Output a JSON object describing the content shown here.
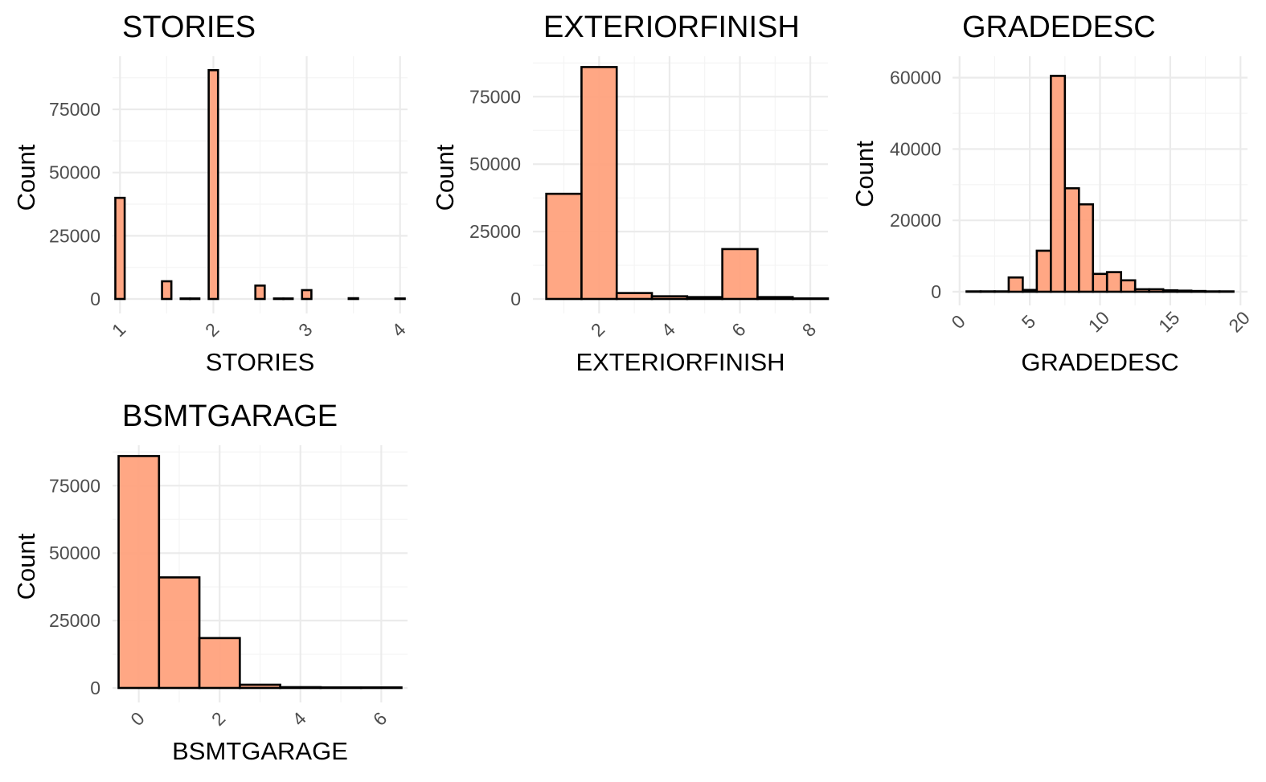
{
  "colors": {
    "bar_fill": "#FFA07A",
    "bar_stroke": "#000000",
    "grid": "#EBEBEB",
    "background": "#FFFFFF"
  },
  "chart_data": [
    {
      "type": "bar",
      "title": "STORIES",
      "xlabel": "STORIES",
      "ylabel": "Count",
      "bin_width": 0.1,
      "xlim": [
        0.92,
        4.08
      ],
      "ylim": [
        0,
        96000
      ],
      "x_ticks": [
        1,
        2,
        3,
        4
      ],
      "x_tick_labels": [
        "1",
        "2",
        "3",
        "4"
      ],
      "y_ticks": [
        0,
        25000,
        50000,
        75000
      ],
      "y_tick_labels": [
        "0",
        "25000",
        "50000",
        "75000"
      ],
      "x": [
        1.0,
        1.1,
        1.2,
        1.3,
        1.4,
        1.5,
        1.6,
        1.7,
        1.8,
        1.9,
        2.0,
        2.1,
        2.2,
        2.3,
        2.4,
        2.5,
        2.6,
        2.7,
        2.8,
        2.9,
        3.0,
        3.1,
        3.2,
        3.3,
        3.4,
        3.5,
        3.6,
        3.7,
        3.8,
        3.9,
        4.0
      ],
      "values": [
        40000,
        0,
        0,
        0,
        0,
        7000,
        0,
        200,
        200,
        0,
        90500,
        0,
        0,
        0,
        0,
        5300,
        0,
        200,
        200,
        0,
        3500,
        0,
        0,
        0,
        0,
        300,
        0,
        0,
        0,
        0,
        200
      ],
      "grid": true
    },
    {
      "type": "bar",
      "title": "EXTERIORFINISH",
      "xlabel": "EXTERIORFINISH",
      "ylabel": "Count",
      "bin_width": 1,
      "xlim": [
        0.12,
        8.5
      ],
      "ylim": [
        0,
        90000
      ],
      "x_ticks": [
        2,
        4,
        6,
        8
      ],
      "x_tick_labels": [
        "2",
        "4",
        "6",
        "8"
      ],
      "y_ticks": [
        0,
        25000,
        50000,
        75000
      ],
      "y_tick_labels": [
        "0",
        "25000",
        "50000",
        "75000"
      ],
      "x": [
        1,
        2,
        3,
        4,
        5,
        6,
        7,
        8
      ],
      "values": [
        39000,
        86000,
        2200,
        1000,
        700,
        18500,
        700,
        200
      ],
      "grid": true
    },
    {
      "type": "bar",
      "title": "GRADEDESC",
      "xlabel": "GRADEDESC",
      "ylabel": "Count",
      "bin_width": 1,
      "xlim": [
        -0.5,
        20.5
      ],
      "ylim": [
        0,
        66000
      ],
      "x_ticks": [
        0,
        5,
        10,
        15,
        20
      ],
      "x_tick_labels": [
        "0",
        "5",
        "10",
        "15",
        "20"
      ],
      "y_ticks": [
        0,
        20000,
        40000,
        60000
      ],
      "y_tick_labels": [
        "0",
        "20000",
        "40000",
        "60000"
      ],
      "x": [
        1,
        2,
        3,
        4,
        5,
        6,
        7,
        8,
        9,
        10,
        11,
        12,
        13,
        14,
        15,
        16,
        17,
        18,
        19
      ],
      "values": [
        100,
        100,
        100,
        4000,
        500,
        11500,
        60500,
        29000,
        24500,
        5000,
        5500,
        3200,
        700,
        700,
        400,
        300,
        200,
        100,
        100
      ],
      "grid": true
    },
    {
      "type": "bar",
      "title": "BSMTGARAGE",
      "xlabel": "BSMTGARAGE",
      "ylabel": "Count",
      "bin_width": 1,
      "xlim": [
        -0.65,
        6.65
      ],
      "ylim": [
        0,
        90000
      ],
      "x_ticks": [
        0,
        2,
        4,
        6
      ],
      "x_tick_labels": [
        "0",
        "2",
        "4",
        "6"
      ],
      "y_ticks": [
        0,
        25000,
        50000,
        75000
      ],
      "y_tick_labels": [
        "0",
        "25000",
        "50000",
        "75000"
      ],
      "x": [
        0,
        1,
        2,
        3,
        4,
        5,
        6
      ],
      "values": [
        86000,
        41000,
        18500,
        1200,
        300,
        200,
        200
      ],
      "grid": true
    }
  ]
}
